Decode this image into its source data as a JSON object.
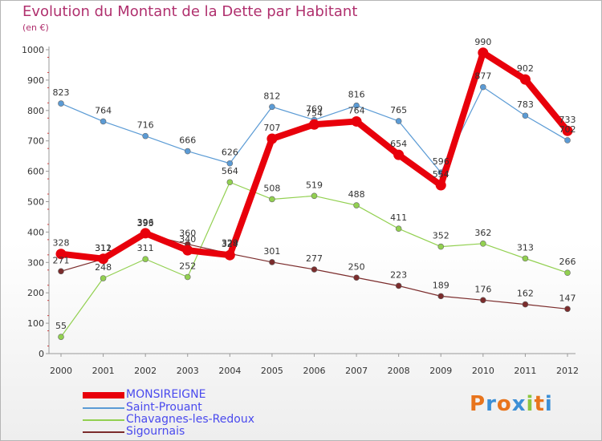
{
  "header": {
    "title": "Evolution du Montant de la Dette par Habitant",
    "subtitle": "(en €)"
  },
  "chart_data": {
    "type": "line",
    "x": [
      "2000",
      "2001",
      "2002",
      "2003",
      "2004",
      "2005",
      "2006",
      "2007",
      "2008",
      "2009",
      "2010",
      "2011",
      "2012"
    ],
    "ylim": [
      0,
      1000
    ],
    "yticks": [
      0,
      100,
      200,
      300,
      400,
      500,
      600,
      700,
      800,
      900,
      1000
    ],
    "grid": false,
    "legend_position": "bottom-left",
    "series": [
      {
        "name": "MONSIREIGNE",
        "color": "#e8000b",
        "values": [
          328,
          312,
          396,
          340,
          324,
          707,
          754,
          764,
          654,
          554,
          990,
          902,
          733
        ]
      },
      {
        "name": "Saint-Prouant",
        "color": "#5b9bd5",
        "values": [
          823,
          764,
          716,
          666,
          626,
          812,
          769,
          816,
          765,
          596,
          877,
          783,
          702
        ]
      },
      {
        "name": "Chavagnes-les-Redoux",
        "color": "#92d050",
        "values": [
          55,
          248,
          311,
          252,
          564,
          508,
          519,
          488,
          411,
          352,
          362,
          313,
          266
        ]
      },
      {
        "name": "Sigournais",
        "color": "#7b2c2c",
        "values": [
          271,
          311,
          393,
          360,
          329,
          301,
          277,
          250,
          223,
          189,
          176,
          162,
          147
        ]
      }
    ]
  },
  "legend": [
    {
      "label": "MONSIREIGNE"
    },
    {
      "label": "Saint-Prouant"
    },
    {
      "label": "Chavagnes-les-Redoux"
    },
    {
      "label": "Sigournais"
    }
  ],
  "logo": {
    "letters": [
      "P",
      "r",
      "o",
      "x",
      "i",
      "t",
      "i"
    ],
    "colors": [
      "#e8741c",
      "#3c8fd6",
      "#e8741c",
      "#3c8fd6",
      "#8cc63f",
      "#e8741c",
      "#3c8fd6"
    ]
  }
}
